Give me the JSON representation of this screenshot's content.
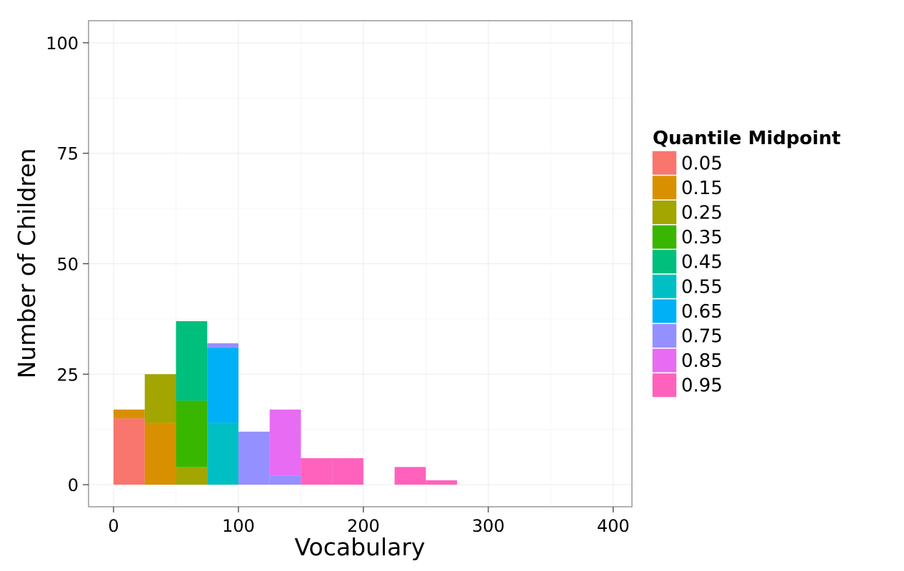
{
  "chart_data": {
    "type": "bar",
    "stacked": true,
    "title": "",
    "xlabel": "Vocabulary",
    "ylabel": "Number of Children",
    "xlim": [
      -20,
      415
    ],
    "ylim": [
      -5,
      105
    ],
    "xticks": [
      0,
      100,
      200,
      300,
      400
    ],
    "yticks": [
      0,
      25,
      50,
      75,
      100
    ],
    "bin_width": 25,
    "bin_starts": [
      0,
      25,
      50,
      75,
      100,
      125,
      150,
      175,
      200,
      225,
      250
    ],
    "grid": true,
    "legend": {
      "title": "Quantile Midpoint",
      "position": "right"
    },
    "series": [
      {
        "name": "0.05",
        "color": "#F8766D",
        "values": [
          15,
          0,
          0,
          0,
          0,
          0,
          0,
          0,
          0,
          0,
          0
        ]
      },
      {
        "name": "0.15",
        "color": "#D89000",
        "values": [
          2,
          14,
          0,
          0,
          0,
          0,
          0,
          0,
          0,
          0,
          0
        ]
      },
      {
        "name": "0.25",
        "color": "#A3A500",
        "values": [
          0,
          11,
          4,
          0,
          0,
          0,
          0,
          0,
          0,
          0,
          0
        ]
      },
      {
        "name": "0.35",
        "color": "#39B600",
        "values": [
          0,
          0,
          15,
          0,
          0,
          0,
          0,
          0,
          0,
          0,
          0
        ]
      },
      {
        "name": "0.45",
        "color": "#00BF7D",
        "values": [
          0,
          0,
          18,
          0,
          0,
          0,
          0,
          0,
          0,
          0,
          0
        ]
      },
      {
        "name": "0.55",
        "color": "#00BFC4",
        "values": [
          0,
          0,
          0,
          14,
          0,
          0,
          0,
          0,
          0,
          0,
          0
        ]
      },
      {
        "name": "0.65",
        "color": "#00B0F6",
        "values": [
          0,
          0,
          0,
          17,
          0,
          0,
          0,
          0,
          0,
          0,
          0
        ]
      },
      {
        "name": "0.75",
        "color": "#9590FF",
        "values": [
          0,
          0,
          0,
          1,
          12,
          2,
          0,
          0,
          0,
          0,
          0
        ]
      },
      {
        "name": "0.85",
        "color": "#E76BF3",
        "values": [
          0,
          0,
          0,
          0,
          0,
          15,
          0,
          0,
          0,
          0,
          0
        ]
      },
      {
        "name": "0.95",
        "color": "#FF62BC",
        "values": [
          0,
          0,
          0,
          0,
          0,
          0,
          6,
          6,
          0,
          4,
          1
        ]
      }
    ]
  }
}
